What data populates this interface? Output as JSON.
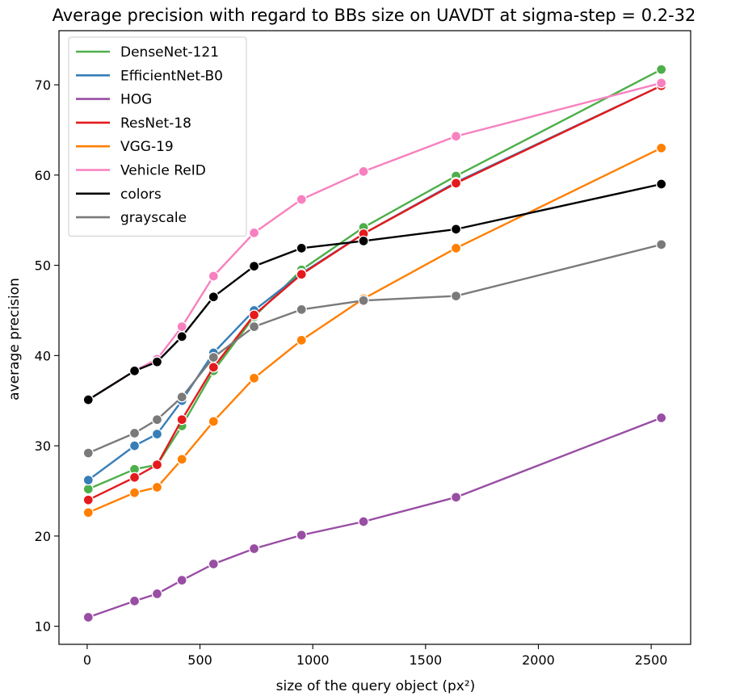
{
  "chart_data": {
    "type": "line",
    "title": "Average precision with regard to BBs size on UAVDT at sigma-step = 0.2-32",
    "xlabel": "size of the query object (px²)",
    "ylabel": "average precision",
    "xlim": [
      -125,
      2675
    ],
    "ylim": [
      8,
      76
    ],
    "xticks": [
      0,
      500,
      1000,
      1500,
      2000,
      2500
    ],
    "yticks": [
      10,
      20,
      30,
      40,
      50,
      60,
      70
    ],
    "grid": false,
    "legend_position": "upper left",
    "x": [
      5,
      210,
      310,
      420,
      560,
      740,
      950,
      1225,
      1635,
      2545
    ],
    "series": [
      {
        "name": "DenseNet-121",
        "color": "#4daf4a",
        "values": [
          25.2,
          27.4,
          27.9,
          32.2,
          38.3,
          44.3,
          49.5,
          54.2,
          59.9,
          71.7
        ]
      },
      {
        "name": "EfficientNet-B0",
        "color": "#377eb8",
        "values": [
          26.2,
          30.0,
          31.3,
          35.0,
          40.3,
          45.0,
          49.1,
          53.5,
          59.2,
          69.9
        ]
      },
      {
        "name": "HOG",
        "color": "#984ea3",
        "values": [
          11.0,
          12.8,
          13.6,
          15.1,
          16.9,
          18.6,
          20.1,
          21.6,
          24.3,
          33.1
        ]
      },
      {
        "name": "ResNet-18",
        "color": "#e41a1c",
        "values": [
          24.0,
          26.5,
          27.9,
          32.9,
          38.7,
          44.5,
          49.0,
          53.5,
          59.1,
          69.9
        ]
      },
      {
        "name": "VGG-19",
        "color": "#ff7f00",
        "values": [
          22.6,
          24.8,
          25.4,
          28.5,
          32.7,
          37.5,
          41.7,
          46.3,
          51.9,
          63.0
        ]
      },
      {
        "name": "Vehicle ReID",
        "color": "#f781bf",
        "values": [
          35.1,
          38.3,
          39.6,
          43.2,
          48.8,
          53.6,
          57.3,
          60.4,
          64.3,
          70.2
        ]
      },
      {
        "name": "colors",
        "color": "#000000",
        "values": [
          35.1,
          38.3,
          39.3,
          42.1,
          46.5,
          49.9,
          51.9,
          52.7,
          54.0,
          59.0
        ]
      },
      {
        "name": "grayscale",
        "color": "#7a7a7a",
        "values": [
          29.2,
          31.4,
          32.9,
          35.4,
          39.8,
          43.2,
          45.1,
          46.1,
          46.6,
          52.3
        ]
      }
    ]
  }
}
